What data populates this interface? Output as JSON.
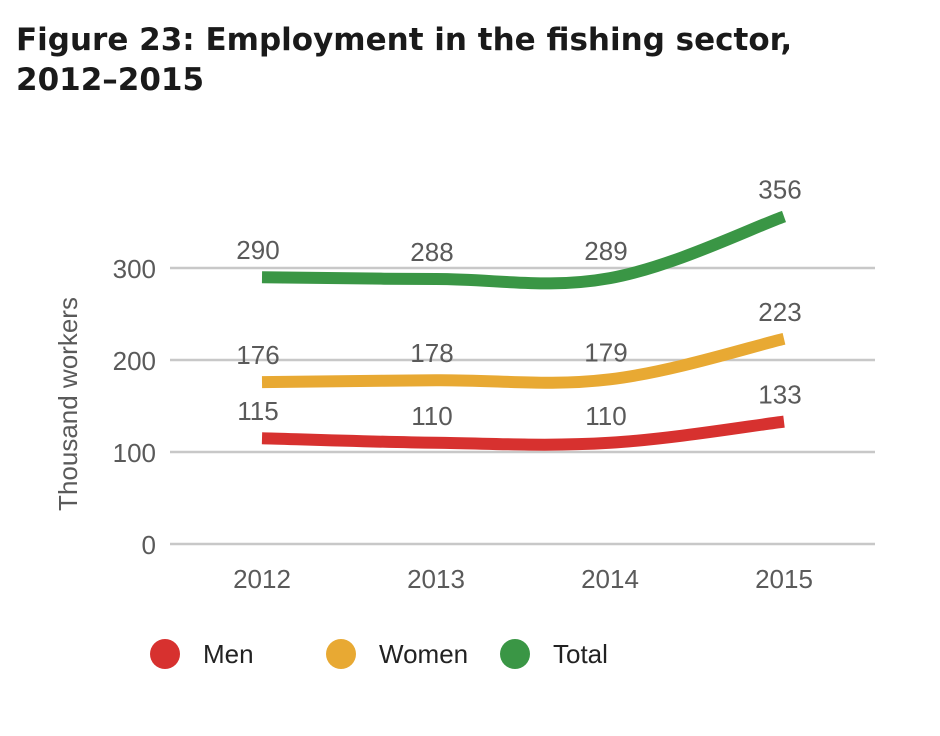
{
  "title": "Figure 23: Employment in the fishing sector, 2012–2015",
  "chart_data": {
    "type": "line",
    "title": "Figure 23: Employment in the fishing sector, 2012–2015",
    "xlabel": "",
    "ylabel": "Thousand workers",
    "categories": [
      "2012",
      "2013",
      "2014",
      "2015"
    ],
    "ylim": [
      0,
      300
    ],
    "yticks": [
      0,
      100,
      200,
      300
    ],
    "grid": true,
    "legend_position": "bottom",
    "series": [
      {
        "name": "Men",
        "color": "#d7312f",
        "values": [
          115,
          110,
          110,
          133
        ]
      },
      {
        "name": "Women",
        "color": "#e8a933",
        "values": [
          176,
          178,
          179,
          223
        ]
      },
      {
        "name": "Total",
        "color": "#3a9645",
        "values": [
          290,
          288,
          289,
          356
        ]
      }
    ]
  }
}
